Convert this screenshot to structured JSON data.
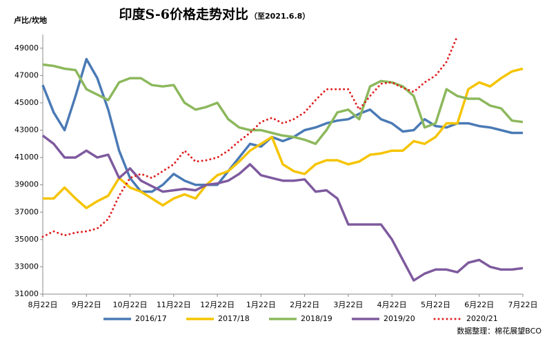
{
  "chart_data": {
    "type": "line",
    "title": "印度S-6价格走势对比",
    "subtitle": "（至2021.6.8）",
    "y_label": "卢比/坎地",
    "source": "数据整理：棉花展望BCO",
    "categories": [
      "8月22日",
      null,
      null,
      null,
      "9月22日",
      null,
      null,
      null,
      "10月22日",
      null,
      null,
      null,
      "11月22日",
      null,
      null,
      null,
      "12月22日",
      null,
      null,
      null,
      "1月22日",
      null,
      null,
      null,
      "2月22日",
      null,
      null,
      null,
      "3月22日",
      null,
      null,
      null,
      "4月22日",
      null,
      null,
      null,
      "5月22日",
      null,
      null,
      null,
      "6月22日",
      null,
      null,
      null,
      "7月22日"
    ],
    "ylim": [
      31000,
      50000
    ],
    "yticks": [
      31000,
      33000,
      35000,
      37000,
      39000,
      41000,
      43000,
      45000,
      47000,
      49000
    ],
    "legend": "bottom",
    "series": [
      {
        "name": "2016/17",
        "color": "#4a7ab5",
        "line_style": "solid",
        "values": [
          46300,
          44300,
          43000,
          45500,
          48200,
          46800,
          44500,
          41500,
          39500,
          38500,
          38500,
          39000,
          39800,
          39300,
          39000,
          39000,
          39000,
          40000,
          41000,
          42000,
          41800,
          42500,
          42200,
          42500,
          43000,
          43200,
          43500,
          43700,
          43800,
          44200,
          44500,
          43800,
          43500,
          42900,
          43000,
          43800,
          43300,
          43200,
          43500,
          43500,
          43300,
          43200,
          43000,
          42800,
          42800
        ]
      },
      {
        "name": "2017/18",
        "color": "#f5c400",
        "line_style": "solid",
        "values": [
          38000,
          38000,
          38800,
          38000,
          37300,
          37800,
          38200,
          39500,
          38800,
          38500,
          38000,
          37500,
          38000,
          38300,
          38000,
          39000,
          39700,
          40000,
          40700,
          41500,
          42000,
          42500,
          40500,
          40000,
          39800,
          40500,
          40800,
          40800,
          40500,
          40700,
          41200,
          41300,
          41500,
          41500,
          42200,
          42000,
          42500,
          43500,
          43500,
          46000,
          46500,
          46200,
          46800,
          47300,
          47500
        ]
      },
      {
        "name": "2018/19",
        "color": "#8cb85c",
        "line_style": "solid",
        "values": [
          47800,
          47700,
          47500,
          47400,
          46000,
          45600,
          45200,
          46500,
          46800,
          46800,
          46300,
          46200,
          46300,
          45000,
          44500,
          44700,
          45000,
          43800,
          43200,
          43000,
          43000,
          42800,
          42600,
          42500,
          42300,
          42000,
          43000,
          44300,
          44500,
          43800,
          46200,
          46600,
          46500,
          46200,
          45500,
          43200,
          43500,
          46000,
          45500,
          45300,
          45300,
          44800,
          44600,
          43700,
          43600
        ]
      },
      {
        "name": "2019/20",
        "color": "#7e5a9e",
        "line_style": "solid",
        "values": [
          42600,
          42000,
          41000,
          41000,
          41500,
          41000,
          41200,
          39500,
          40200,
          39300,
          38900,
          38500,
          38600,
          38700,
          38600,
          39000,
          39100,
          39300,
          39800,
          40500,
          39700,
          39500,
          39300,
          39300,
          39400,
          38500,
          38600,
          38000,
          36100,
          36100,
          36100,
          36100,
          35000,
          33500,
          32000,
          32500,
          32800,
          32800,
          32600,
          33300,
          33500,
          33000,
          32800,
          32800,
          32900
        ]
      },
      {
        "name": "2020/21",
        "color": "#e02020",
        "line_style": "dotted",
        "values": [
          35200,
          35600,
          35300,
          35500,
          35600,
          35800,
          36500,
          38200,
          39500,
          39800,
          39500,
          40000,
          40500,
          41500,
          40700,
          40800,
          41000,
          41500,
          42200,
          42800,
          43600,
          43900,
          43500,
          43800,
          44300,
          45200,
          46000,
          46000,
          46000,
          44500,
          45500,
          46400,
          46500,
          46100,
          45800,
          46500,
          47000,
          48000,
          49900,
          null,
          null,
          null,
          null,
          null,
          null
        ]
      }
    ]
  }
}
